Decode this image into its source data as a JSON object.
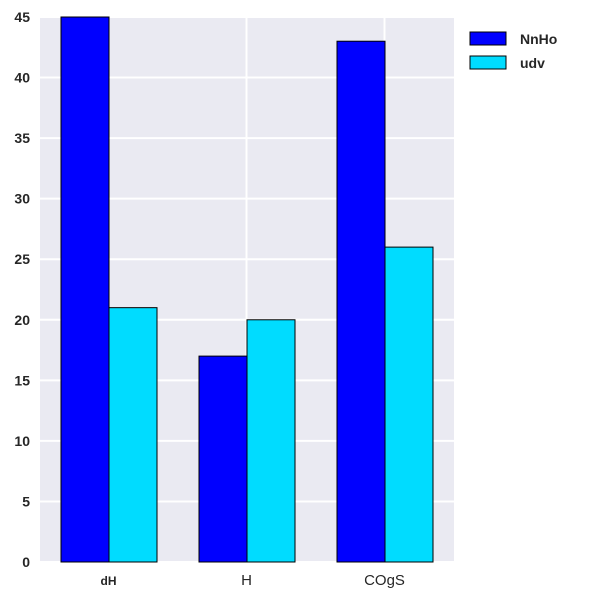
{
  "chart_data": {
    "type": "bar",
    "categories": [
      "dH",
      "H",
      "COgS"
    ],
    "series": [
      {
        "name": "NnHo",
        "values": [
          45,
          17,
          43
        ],
        "color": "#0000ff"
      },
      {
        "name": "udv",
        "values": [
          21,
          20,
          26
        ],
        "color": "#00dcff"
      }
    ],
    "title": "",
    "xlabel": "",
    "ylabel": "",
    "ylim": [
      0,
      45
    ],
    "yticks": [
      "0",
      "5",
      "10",
      "15",
      "20",
      "25",
      "30",
      "35",
      "40",
      "45"
    ],
    "grid": true,
    "legend_position": "top-right (outside plot)",
    "plot_background": "#eaeaf2",
    "bar_edge_color": "#000000"
  }
}
